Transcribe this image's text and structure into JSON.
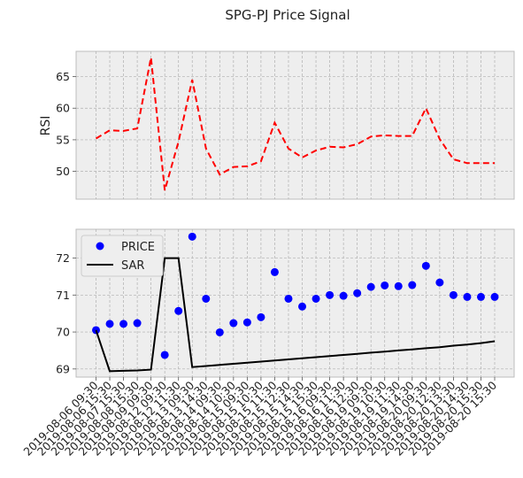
{
  "chart_data": {
    "title": "SPG-PJ Price Signal",
    "categories": [
      "2019-08-06 09:30",
      "2019-08-06 15:30",
      "2019-08-07 15:30",
      "2019-08-08 15:30",
      "2019-08-09 09:30",
      "2019-08-12 09:30",
      "2019-08-12 11:30",
      "2019-08-13 09:30",
      "2019-08-13 14:30",
      "2019-08-14 09:30",
      "2019-08-14 10:30",
      "2019-08-15 09:30",
      "2019-08-15 10:30",
      "2019-08-15 11:30",
      "2019-08-15 12:30",
      "2019-08-15 14:30",
      "2019-08-15 15:30",
      "2019-08-16 09:30",
      "2019-08-16 11:30",
      "2019-08-16 12:30",
      "2019-08-19 09:30",
      "2019-08-19 10:30",
      "2019-08-19 11:30",
      "2019-08-19 14:30",
      "2019-08-20 09:30",
      "2019-08-20 12:30",
      "2019-08-20 13:30",
      "2019-08-20 14:30",
      "2019-08-20 15:30",
      "2019-08-20 15:30"
    ],
    "panels": [
      {
        "type": "line",
        "ylabel": "RSI",
        "ylim": [
          45.6,
          69.0
        ],
        "yticks": [
          50,
          55,
          60,
          65
        ],
        "grid": true,
        "series": [
          {
            "values": [
              55.2,
              56.5,
              56.4,
              56.8,
              68.0,
              47.0,
              54.7,
              64.5,
              53.6,
              49.5,
              50.7,
              50.8,
              51.6,
              57.7,
              53.6,
              52.2,
              53.3,
              53.9,
              53.8,
              54.3,
              55.5,
              55.7,
              55.6,
              55.6,
              60.0,
              55.1,
              51.9,
              51.3,
              51.3,
              51.3
            ],
            "color": "#ff0000",
            "style": "dashed"
          }
        ]
      },
      {
        "type": "scatter+line",
        "ylim": [
          68.78,
          72.78
        ],
        "yticks": [
          69,
          70,
          71,
          72
        ],
        "grid": true,
        "legend_position": "upper-left",
        "legend": [
          "PRICE",
          "SAR"
        ],
        "series": [
          {
            "name": "PRICE",
            "kind": "scatter",
            "color": "#0000ff",
            "values": [
              70.05,
              70.22,
              70.22,
              70.24,
              71.65,
              69.38,
              70.57,
              72.58,
              70.9,
              69.99,
              70.24,
              70.26,
              70.4,
              71.62,
              70.9,
              70.69,
              70.9,
              71.0,
              70.98,
              71.05,
              71.22,
              71.26,
              71.24,
              71.27,
              71.79,
              71.34,
              71.0,
              70.95,
              70.95,
              70.95
            ]
          },
          {
            "name": "SAR",
            "kind": "line",
            "color": "#000000",
            "values": [
              70.05,
              68.94,
              68.95,
              68.96,
              68.98,
              72.0,
              72.0,
              69.05,
              69.08,
              69.11,
              69.14,
              69.17,
              69.2,
              69.23,
              69.26,
              69.29,
              69.32,
              69.35,
              69.38,
              69.41,
              69.44,
              69.47,
              69.5,
              69.53,
              69.56,
              69.59,
              69.63,
              69.66,
              69.7,
              69.75
            ]
          }
        ]
      }
    ]
  }
}
